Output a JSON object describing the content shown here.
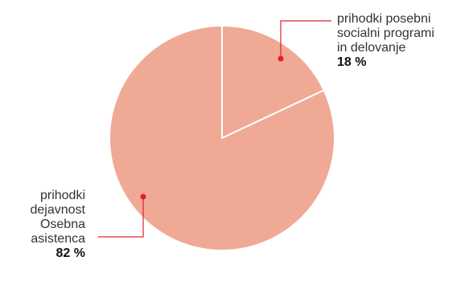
{
  "colors": {
    "slice_fill": "#f0a995",
    "slice_border": "#ffffff",
    "marker": "#e0202c"
  },
  "chart_data": {
    "type": "pie",
    "start_angle_deg": 0,
    "direction": "clockwise",
    "slices": [
      {
        "label_lines": [
          "prihodki posebni",
          "socialni programi",
          "in delovanje"
        ],
        "label": "prihodki posebni socialni programi in delovanje",
        "value": 18,
        "value_label": "18 %"
      },
      {
        "label_lines": [
          "prihodki",
          "dejavnost",
          "Osebna",
          "asistenca"
        ],
        "label": "prihodki dejavnost Osebna asistenca",
        "value": 82,
        "value_label": "82 %"
      }
    ]
  }
}
